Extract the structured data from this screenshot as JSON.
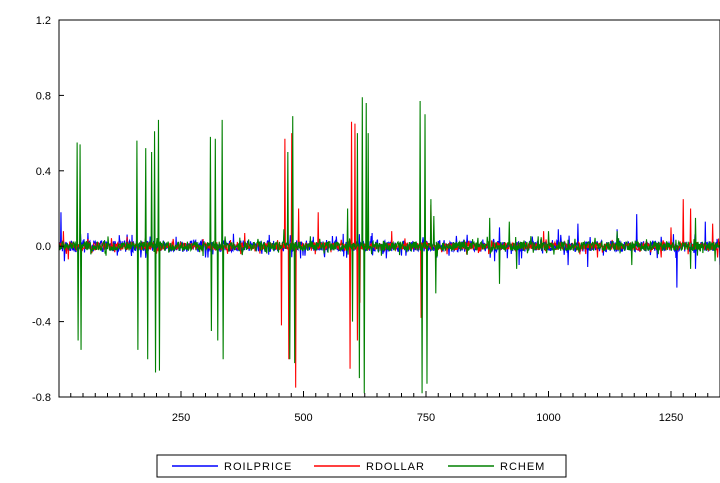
{
  "chart_data": {
    "type": "line",
    "title": "",
    "xlabel": "",
    "ylabel": "",
    "xlim": [
      1,
      1350
    ],
    "ylim": [
      -0.8,
      1.2
    ],
    "yticks": [
      -0.8,
      -0.4,
      0.0,
      0.4,
      0.8,
      1.2
    ],
    "ytick_labels": [
      "-0.8",
      "-0.4",
      "0.0",
      "0.4",
      "0.8",
      "1.2"
    ],
    "xticks": [
      250,
      500,
      750,
      1000,
      1250
    ],
    "xtick_labels": [
      "250",
      "500",
      "750",
      "1000",
      "1250"
    ],
    "grid": false,
    "legend_position": "bottom-center",
    "series": [
      {
        "name": "ROILPRICE",
        "color": "#0000ff",
        "noise_amplitude": 0.03,
        "values": [
          [
            5,
            0.18
          ],
          [
            12,
            -0.08
          ],
          [
            60,
            0.07
          ],
          [
            120,
            -0.05
          ],
          [
            150,
            0.06
          ],
          [
            240,
            0.05
          ],
          [
            300,
            -0.06
          ],
          [
            430,
            0.06
          ],
          [
            520,
            0.05
          ],
          [
            640,
            0.07
          ],
          [
            700,
            -0.05
          ],
          [
            890,
            -0.08
          ],
          [
            900,
            0.1
          ],
          [
            940,
            -0.1
          ],
          [
            1020,
            0.09
          ],
          [
            1040,
            -0.1
          ],
          [
            1060,
            0.12
          ],
          [
            1080,
            -0.11
          ],
          [
            1140,
            0.09
          ],
          [
            1180,
            0.17
          ],
          [
            1230,
            0.05
          ],
          [
            1262,
            -0.22
          ],
          [
            1300,
            -0.12
          ],
          [
            1320,
            0.13
          ],
          [
            1350,
            -0.1
          ]
        ]
      },
      {
        "name": "RDOLLAR",
        "color": "#ff0000",
        "noise_amplitude": 0.02,
        "values": [
          [
            10,
            0.08
          ],
          [
            20,
            -0.07
          ],
          [
            140,
            0.05
          ],
          [
            200,
            -0.04
          ],
          [
            380,
            0.07
          ],
          [
            455,
            -0.42
          ],
          [
            462,
            0.57
          ],
          [
            470,
            -0.6
          ],
          [
            476,
            0.6
          ],
          [
            484,
            -0.75
          ],
          [
            490,
            0.2
          ],
          [
            530,
            0.18
          ],
          [
            595,
            -0.65
          ],
          [
            598,
            0.66
          ],
          [
            605,
            0.65
          ],
          [
            610,
            -0.5
          ],
          [
            615,
            -0.3
          ],
          [
            680,
            0.08
          ],
          [
            740,
            -0.38
          ],
          [
            760,
            0.22
          ],
          [
            770,
            -0.12
          ],
          [
            990,
            0.08
          ],
          [
            1100,
            -0.06
          ],
          [
            1230,
            -0.06
          ],
          [
            1250,
            0.1
          ],
          [
            1275,
            0.25
          ],
          [
            1290,
            0.2
          ],
          [
            1335,
            0.12
          ],
          [
            1345,
            -0.06
          ]
        ]
      },
      {
        "name": "RCHEM",
        "color": "#008000",
        "noise_amplitude": 0.025,
        "values": [
          [
            38,
            0.55
          ],
          [
            40,
            -0.5
          ],
          [
            44,
            0.54
          ],
          [
            46,
            -0.55
          ],
          [
            160,
            0.56
          ],
          [
            162,
            -0.55
          ],
          [
            178,
            0.52
          ],
          [
            182,
            -0.6
          ],
          [
            190,
            0.5
          ],
          [
            196,
            0.61
          ],
          [
            198,
            -0.67
          ],
          [
            204,
            0.67
          ],
          [
            206,
            -0.66
          ],
          [
            310,
            0.58
          ],
          [
            312,
            -0.45
          ],
          [
            320,
            0.57
          ],
          [
            325,
            -0.5
          ],
          [
            334,
            0.67
          ],
          [
            336,
            -0.6
          ],
          [
            460,
            0.09
          ],
          [
            468,
            0.5
          ],
          [
            472,
            -0.6
          ],
          [
            478,
            0.69
          ],
          [
            482,
            -0.62
          ],
          [
            590,
            0.2
          ],
          [
            600,
            -0.4
          ],
          [
            610,
            0.6
          ],
          [
            614,
            -0.7
          ],
          [
            620,
            0.79
          ],
          [
            624,
            -0.78
          ],
          [
            628,
            0.76
          ],
          [
            632,
            0.6
          ],
          [
            738,
            0.77
          ],
          [
            742,
            -0.78
          ],
          [
            748,
            0.7
          ],
          [
            752,
            -0.73
          ],
          [
            760,
            0.25
          ],
          [
            766,
            0.16
          ],
          [
            770,
            -0.25
          ],
          [
            880,
            0.15
          ],
          [
            900,
            -0.2
          ],
          [
            920,
            0.13
          ],
          [
            935,
            -0.12
          ],
          [
            1000,
            0.08
          ],
          [
            1140,
            0.08
          ],
          [
            1170,
            -0.1
          ],
          [
            1290,
            -0.12
          ],
          [
            1300,
            0.15
          ],
          [
            1340,
            -0.08
          ]
        ]
      }
    ]
  }
}
